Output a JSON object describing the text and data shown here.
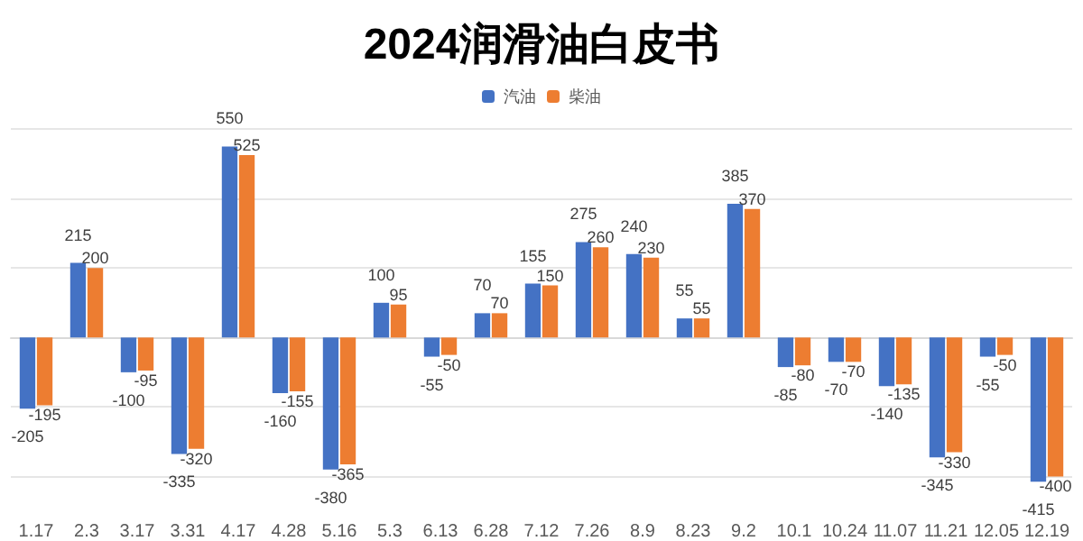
{
  "chart_data": {
    "type": "bar",
    "title": "2024润滑油白皮书",
    "categories": [
      "1.17",
      "2.3",
      "3.17",
      "3.31",
      "4.17",
      "4.28",
      "5.16",
      "5.3",
      "6.13",
      "6.28",
      "7.12",
      "7.26",
      "8.9",
      "8.23",
      "9.2",
      "10.1",
      "10.24",
      "11.07",
      "11.21",
      "12.05",
      "12.19"
    ],
    "series": [
      {
        "name": "汽油",
        "color": "#4472c4",
        "values": [
          -205,
          215,
          -100,
          -335,
          550,
          -160,
          -380,
          100,
          -55,
          70,
          155,
          275,
          240,
          55,
          385,
          -85,
          -70,
          -140,
          -345,
          -55,
          -415
        ]
      },
      {
        "name": "柴油",
        "color": "#ed7d31",
        "values": [
          -195,
          200,
          -95,
          -320,
          525,
          -155,
          -365,
          95,
          -50,
          70,
          150,
          260,
          230,
          55,
          370,
          -80,
          -70,
          -135,
          -330,
          -50,
          -400
        ]
      }
    ],
    "yticks": [
      {
        "value": -400,
        "label": null
      },
      {
        "value": -200,
        "label": null
      },
      {
        "value": 0,
        "label": null
      },
      {
        "value": 200,
        "label": null
      },
      {
        "value": 400,
        "label": null
      },
      {
        "value": 600,
        "label": null
      }
    ],
    "tick_labels": "x",
    "grid": "y",
    "legend": "top",
    "data_labels": true
  }
}
